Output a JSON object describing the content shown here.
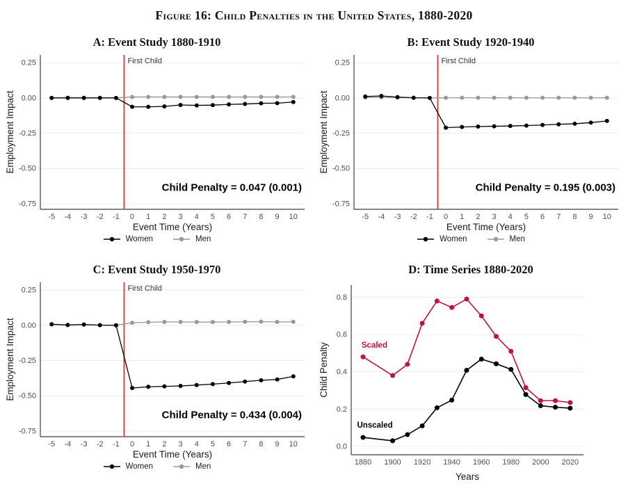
{
  "figure_title": "Figure 16: Child Penalties in the United States, 1880-2020",
  "legend": {
    "women_label": "Women",
    "men_label": "Men"
  },
  "colors": {
    "women": "#000000",
    "men": "#999999",
    "event_line": "#e04343",
    "scaled": "#c11338",
    "unscaled": "#000000",
    "grid": "#ececec",
    "axis": "#3c3c3c",
    "tick_text": "#4d4d4d",
    "label_text": "#1a1a1a",
    "vline_label_text": "#333333",
    "annotation_text": "#000000"
  },
  "chart_data": [
    {
      "id": "A",
      "type": "line",
      "title": "A: Event Study 1880-1910",
      "xlabel": "Event Time (Years)",
      "ylabel": "Employment Impact",
      "xlim": [
        -5.7,
        10.7
      ],
      "ylim": [
        -0.79,
        0.305
      ],
      "grid": "horizontal",
      "xticks": [
        {
          "v": -5,
          "label": "-5"
        },
        {
          "v": -4,
          "label": "-4"
        },
        {
          "v": -3,
          "label": "-3"
        },
        {
          "v": -2,
          "label": "-2"
        },
        {
          "v": -1,
          "label": "-1"
        },
        {
          "v": 0,
          "label": "0"
        },
        {
          "v": 1,
          "label": "1"
        },
        {
          "v": 2,
          "label": "2"
        },
        {
          "v": 3,
          "label": "3"
        },
        {
          "v": 4,
          "label": "4"
        },
        {
          "v": 5,
          "label": "5"
        },
        {
          "v": 6,
          "label": "6"
        },
        {
          "v": 7,
          "label": "7"
        },
        {
          "v": 8,
          "label": "8"
        },
        {
          "v": 9,
          "label": "9"
        },
        {
          "v": 10,
          "label": "10"
        }
      ],
      "yticks": [
        {
          "v": 0.25,
          "label": "0.25"
        },
        {
          "v": 0,
          "label": "0.00"
        },
        {
          "v": -0.25,
          "label": "-0.25"
        },
        {
          "v": -0.5,
          "label": "-0.50"
        },
        {
          "v": -0.75,
          "label": "-0.75"
        }
      ],
      "vline": {
        "x": -0.5,
        "label": "First Child"
      },
      "annotation": {
        "text": "Child Penalty = 0.047 (0.001)",
        "y": -0.66
      },
      "x": [
        -5,
        -4,
        -3,
        -2,
        -1,
        0,
        1,
        2,
        3,
        4,
        5,
        6,
        7,
        8,
        9,
        10
      ],
      "series": [
        {
          "name": "Men",
          "color_key": "men",
          "values": [
            0.001,
            0.002,
            0.002,
            0.001,
            0.0,
            0.007,
            0.007,
            0.007,
            0.007,
            0.007,
            0.007,
            0.007,
            0.007,
            0.007,
            0.007,
            0.007
          ]
        },
        {
          "name": "Women",
          "color_key": "women",
          "values": [
            0.0,
            0.0,
            0.0,
            0.0,
            0.0,
            -0.063,
            -0.063,
            -0.06,
            -0.05,
            -0.053,
            -0.051,
            -0.046,
            -0.043,
            -0.038,
            -0.037,
            -0.029
          ]
        }
      ]
    },
    {
      "id": "B",
      "type": "line",
      "title": "B: Event Study 1920-1940",
      "xlabel": "Event Time (Years)",
      "ylabel": "Employment Impact",
      "xlim": [
        -5.7,
        10.7
      ],
      "ylim": [
        -0.79,
        0.305
      ],
      "grid": "horizontal",
      "xticks": [
        {
          "v": -5,
          "label": "-5"
        },
        {
          "v": -4,
          "label": "-4"
        },
        {
          "v": -3,
          "label": "-3"
        },
        {
          "v": -2,
          "label": "-2"
        },
        {
          "v": -1,
          "label": "-1"
        },
        {
          "v": 0,
          "label": "0"
        },
        {
          "v": 1,
          "label": "1"
        },
        {
          "v": 2,
          "label": "2"
        },
        {
          "v": 3,
          "label": "3"
        },
        {
          "v": 4,
          "label": "4"
        },
        {
          "v": 5,
          "label": "5"
        },
        {
          "v": 6,
          "label": "6"
        },
        {
          "v": 7,
          "label": "7"
        },
        {
          "v": 8,
          "label": "8"
        },
        {
          "v": 9,
          "label": "9"
        },
        {
          "v": 10,
          "label": "10"
        }
      ],
      "yticks": [
        {
          "v": 0.25,
          "label": "0.25"
        },
        {
          "v": 0,
          "label": "0.00"
        },
        {
          "v": -0.25,
          "label": "-0.25"
        },
        {
          "v": -0.5,
          "label": "-0.50"
        },
        {
          "v": -0.75,
          "label": "-0.75"
        }
      ],
      "vline": {
        "x": -0.5,
        "label": "First Child"
      },
      "annotation": {
        "text": "Child Penalty = 0.195 (0.003)",
        "y": -0.66
      },
      "x": [
        -5,
        -4,
        -3,
        -2,
        -1,
        0,
        1,
        2,
        3,
        4,
        5,
        6,
        7,
        8,
        9,
        10
      ],
      "series": [
        {
          "name": "Men",
          "color_key": "men",
          "values": [
            0.003,
            0.004,
            0.002,
            0.001,
            0.0,
            0.001,
            0.001,
            0.001,
            0.001,
            0.001,
            0.001,
            0.001,
            0.001,
            0.001,
            0.001,
            0.001
          ]
        },
        {
          "name": "Women",
          "color_key": "women",
          "values": [
            0.01,
            0.014,
            0.006,
            0.001,
            0.0,
            -0.211,
            -0.206,
            -0.203,
            -0.201,
            -0.199,
            -0.196,
            -0.192,
            -0.187,
            -0.183,
            -0.175,
            -0.163
          ]
        }
      ]
    },
    {
      "id": "C",
      "type": "line",
      "title": "C: Event Study 1950-1970",
      "xlabel": "Event Time (Years)",
      "ylabel": "Employment Impact",
      "xlim": [
        -5.7,
        10.7
      ],
      "ylim": [
        -0.79,
        0.305
      ],
      "grid": "horizontal",
      "xticks": [
        {
          "v": -5,
          "label": "-5"
        },
        {
          "v": -4,
          "label": "-4"
        },
        {
          "v": -3,
          "label": "-3"
        },
        {
          "v": -2,
          "label": "-2"
        },
        {
          "v": -1,
          "label": "-1"
        },
        {
          "v": 0,
          "label": "0"
        },
        {
          "v": 1,
          "label": "1"
        },
        {
          "v": 2,
          "label": "2"
        },
        {
          "v": 3,
          "label": "3"
        },
        {
          "v": 4,
          "label": "4"
        },
        {
          "v": 5,
          "label": "5"
        },
        {
          "v": 6,
          "label": "6"
        },
        {
          "v": 7,
          "label": "7"
        },
        {
          "v": 8,
          "label": "8"
        },
        {
          "v": 9,
          "label": "9"
        },
        {
          "v": 10,
          "label": "10"
        }
      ],
      "yticks": [
        {
          "v": 0.25,
          "label": "0.25"
        },
        {
          "v": 0,
          "label": "0.00"
        },
        {
          "v": -0.25,
          "label": "-0.25"
        },
        {
          "v": -0.5,
          "label": "-0.50"
        },
        {
          "v": -0.75,
          "label": "-0.75"
        }
      ],
      "vline": {
        "x": -0.5,
        "label": "First Child"
      },
      "annotation": {
        "text": "Child Penalty = 0.434 (0.004)",
        "y": -0.66
      },
      "x": [
        -5,
        -4,
        -3,
        -2,
        -1,
        0,
        1,
        2,
        3,
        4,
        5,
        6,
        7,
        8,
        9,
        10
      ],
      "series": [
        {
          "name": "Men",
          "color_key": "men",
          "values": [
            0.005,
            0.002,
            0.004,
            0.001,
            0.001,
            0.018,
            0.022,
            0.024,
            0.024,
            0.023,
            0.023,
            0.024,
            0.025,
            0.026,
            0.024,
            0.025
          ]
        },
        {
          "name": "Women",
          "color_key": "women",
          "values": [
            0.008,
            0.002,
            0.006,
            0.001,
            0.0,
            -0.445,
            -0.436,
            -0.433,
            -0.43,
            -0.424,
            -0.417,
            -0.409,
            -0.399,
            -0.39,
            -0.384,
            -0.362
          ]
        }
      ]
    },
    {
      "id": "D",
      "type": "line",
      "title": "D: Time Series 1880-2020",
      "xlabel": "Years",
      "ylabel": "Child Penalty",
      "xlim": [
        1872,
        2029
      ],
      "ylim": [
        -0.045,
        0.865
      ],
      "grid": "horizontal",
      "xticks": [
        {
          "v": 1880,
          "label": "1880"
        },
        {
          "v": 1900,
          "label": "1900"
        },
        {
          "v": 1920,
          "label": "1920"
        },
        {
          "v": 1940,
          "label": "1940"
        },
        {
          "v": 1960,
          "label": "1960"
        },
        {
          "v": 1980,
          "label": "1980"
        },
        {
          "v": 2000,
          "label": "2000"
        },
        {
          "v": 2020,
          "label": "2020"
        }
      ],
      "yticks": [
        {
          "v": 0,
          "label": "0.0"
        },
        {
          "v": 0.2,
          "label": "0.2"
        },
        {
          "v": 0.4,
          "label": "0.4"
        },
        {
          "v": 0.6,
          "label": "0.6"
        },
        {
          "v": 0.8,
          "label": "0.8"
        }
      ],
      "x": [
        1880,
        1900,
        1910,
        1920,
        1930,
        1940,
        1950,
        1960,
        1970,
        1980,
        1990,
        2000,
        2010,
        2020
      ],
      "series": [
        {
          "name": "Scaled",
          "color_key": "scaled",
          "width": 1.6,
          "r": 3.5,
          "values": [
            0.48,
            0.38,
            0.44,
            0.66,
            0.78,
            0.745,
            0.79,
            0.7,
            0.59,
            0.51,
            0.315,
            0.245,
            0.245,
            0.235
          ]
        },
        {
          "name": "Unscaled",
          "color_key": "unscaled",
          "width": 1.6,
          "r": 3.5,
          "values": [
            0.048,
            0.03,
            0.063,
            0.11,
            0.207,
            0.248,
            0.408,
            0.468,
            0.443,
            0.413,
            0.278,
            0.218,
            0.21,
            0.205
          ]
        }
      ],
      "point_labels": [
        {
          "text": "Scaled",
          "x": 1879,
          "y": 0.545,
          "color_key": "scaled"
        },
        {
          "text": "Unscaled",
          "x": 1876,
          "y": 0.115,
          "color_key": "unscaled"
        }
      ]
    }
  ]
}
